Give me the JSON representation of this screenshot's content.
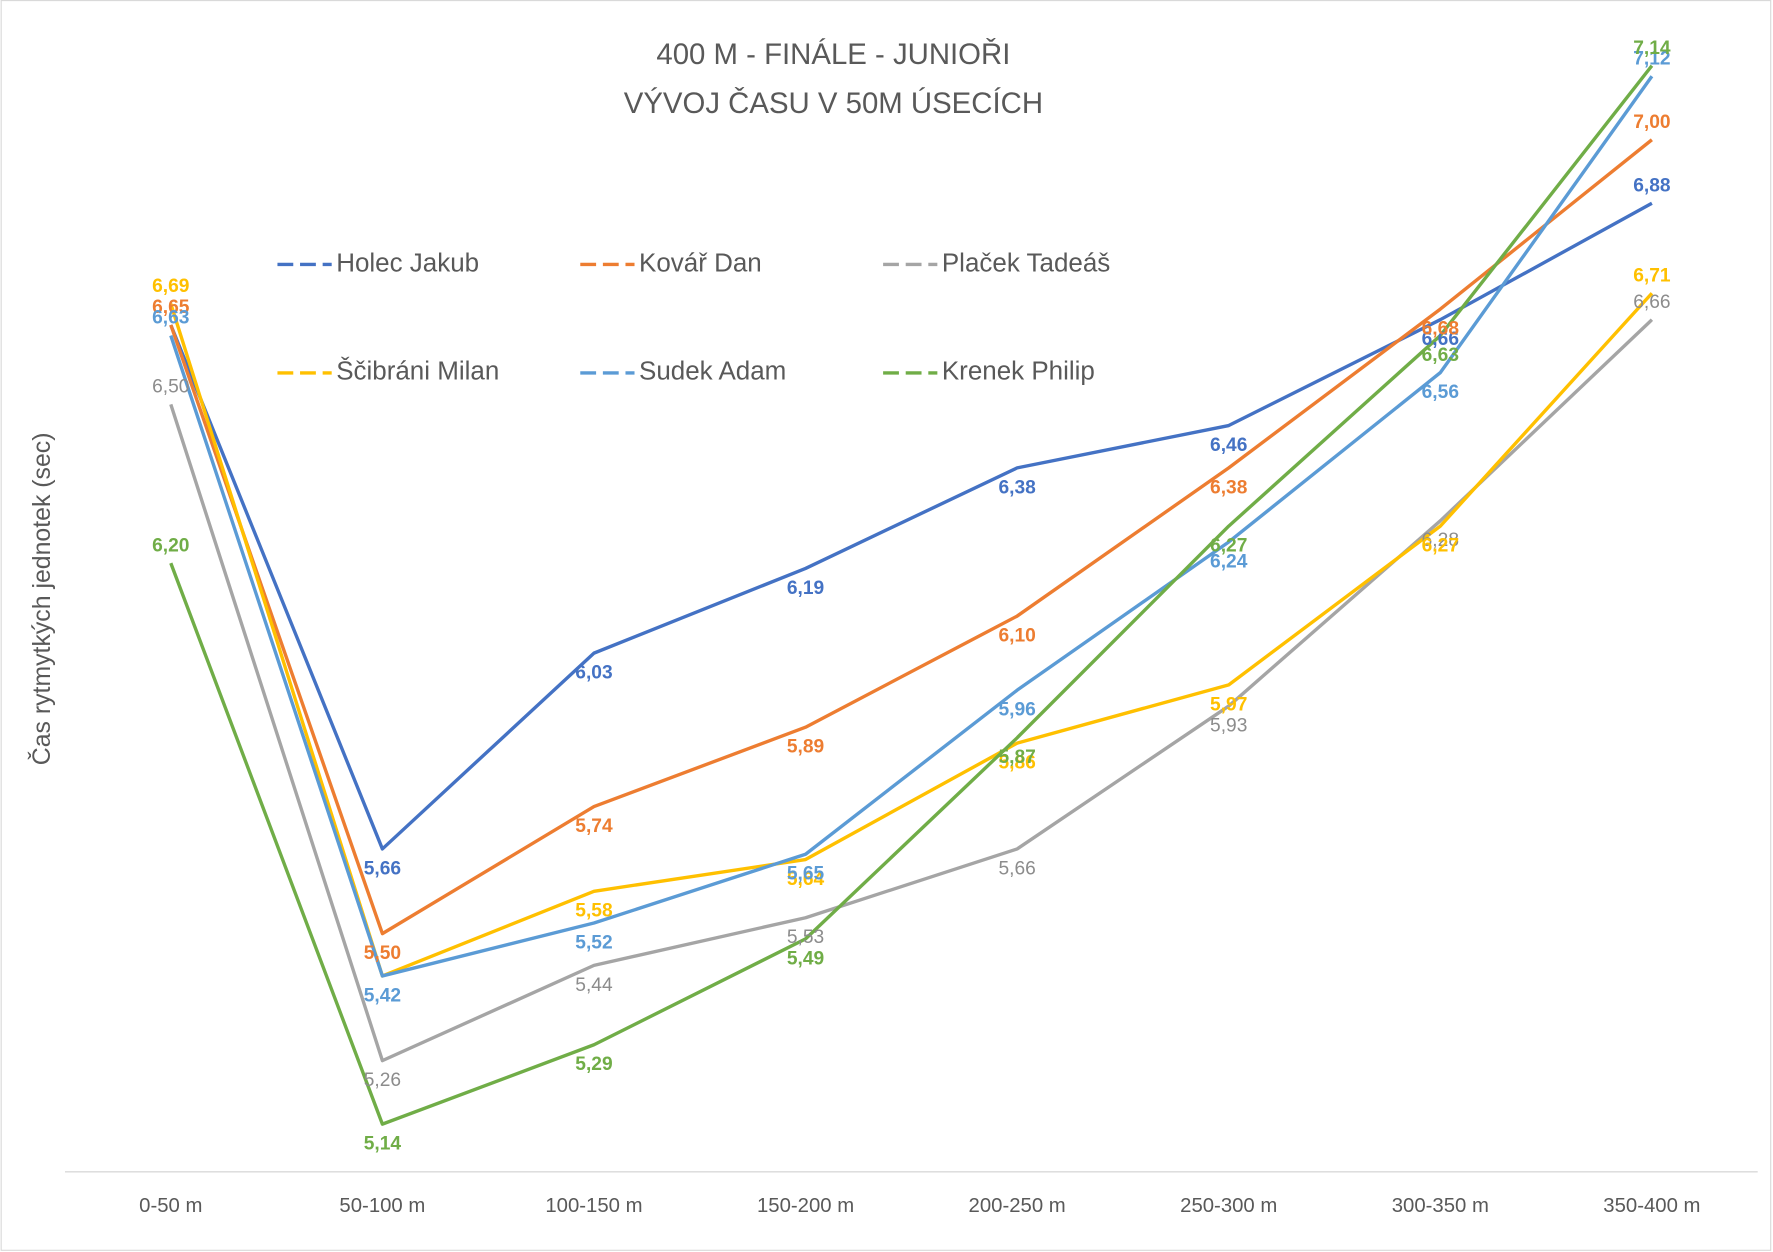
{
  "chart_data": {
    "type": "line",
    "title": "400 M - FINÁLE - JUNIOŘI",
    "subtitle": "VÝVOJ ČASU V 50M ÚSECÍCH",
    "y_label": "Čas rytmytkých jednotek (sec)",
    "categories": [
      "0-50 m",
      "50-100 m",
      "100-150 m",
      "150-200 m",
      "200-250 m",
      "250-300 m",
      "300-350 m",
      "350-400 m"
    ],
    "ylim": [
      5.05,
      7.2
    ],
    "grid": false,
    "legend": "top",
    "series": [
      {
        "name": "Holec Jakub",
        "color": "#4472c4",
        "values": [
          6.65,
          5.66,
          6.03,
          6.19,
          6.38,
          6.46,
          6.66,
          6.88
        ],
        "value_labels": [
          null,
          "5,66",
          "6,03",
          "6,19",
          "6,38",
          "6,46",
          "6,66",
          "6,88"
        ]
      },
      {
        "name": "Kovář Dan",
        "color": "#ed7d31",
        "values": [
          6.65,
          5.5,
          5.74,
          5.89,
          6.1,
          6.38,
          6.68,
          7.0
        ],
        "value_labels": [
          "6,65",
          "5,50",
          "5,74",
          "5,89",
          "6,10",
          "6,38",
          "6,68",
          "7,00"
        ]
      },
      {
        "name": "Plaček Tadeáš",
        "color": "#a5a5a5",
        "values": [
          6.5,
          5.26,
          5.44,
          5.53,
          5.66,
          5.93,
          6.28,
          6.66
        ],
        "value_labels": [
          "6,50",
          "5,26",
          "5,44",
          "5,53",
          "5,66",
          "5,93",
          "6,28",
          "6,66"
        ]
      },
      {
        "name": "Ščibráni Milan",
        "color": "#ffc000",
        "values": [
          6.69,
          5.42,
          5.58,
          5.64,
          5.86,
          5.97,
          6.27,
          6.71
        ],
        "value_labels": [
          "6,69",
          null,
          "5,58",
          "5,64",
          "5,86",
          "5,97",
          "6,27",
          "6,71"
        ]
      },
      {
        "name": "Sudek Adam",
        "color": "#5b9bd5",
        "values": [
          6.63,
          5.42,
          5.52,
          5.65,
          5.96,
          6.24,
          6.56,
          7.12
        ],
        "value_labels": [
          "6,63",
          "5,42",
          "5,52",
          "5,65",
          "5,96",
          "6,24",
          "6,56",
          "7,12"
        ]
      },
      {
        "name": "Krenek Philip",
        "color": "#70ad47",
        "values": [
          6.2,
          5.14,
          5.29,
          5.49,
          5.87,
          6.27,
          6.63,
          7.14
        ],
        "value_labels": [
          "6,20",
          "5,14",
          "5,29",
          "5,49",
          "5,87",
          "6,27",
          "6,63",
          "7,14"
        ]
      }
    ]
  }
}
